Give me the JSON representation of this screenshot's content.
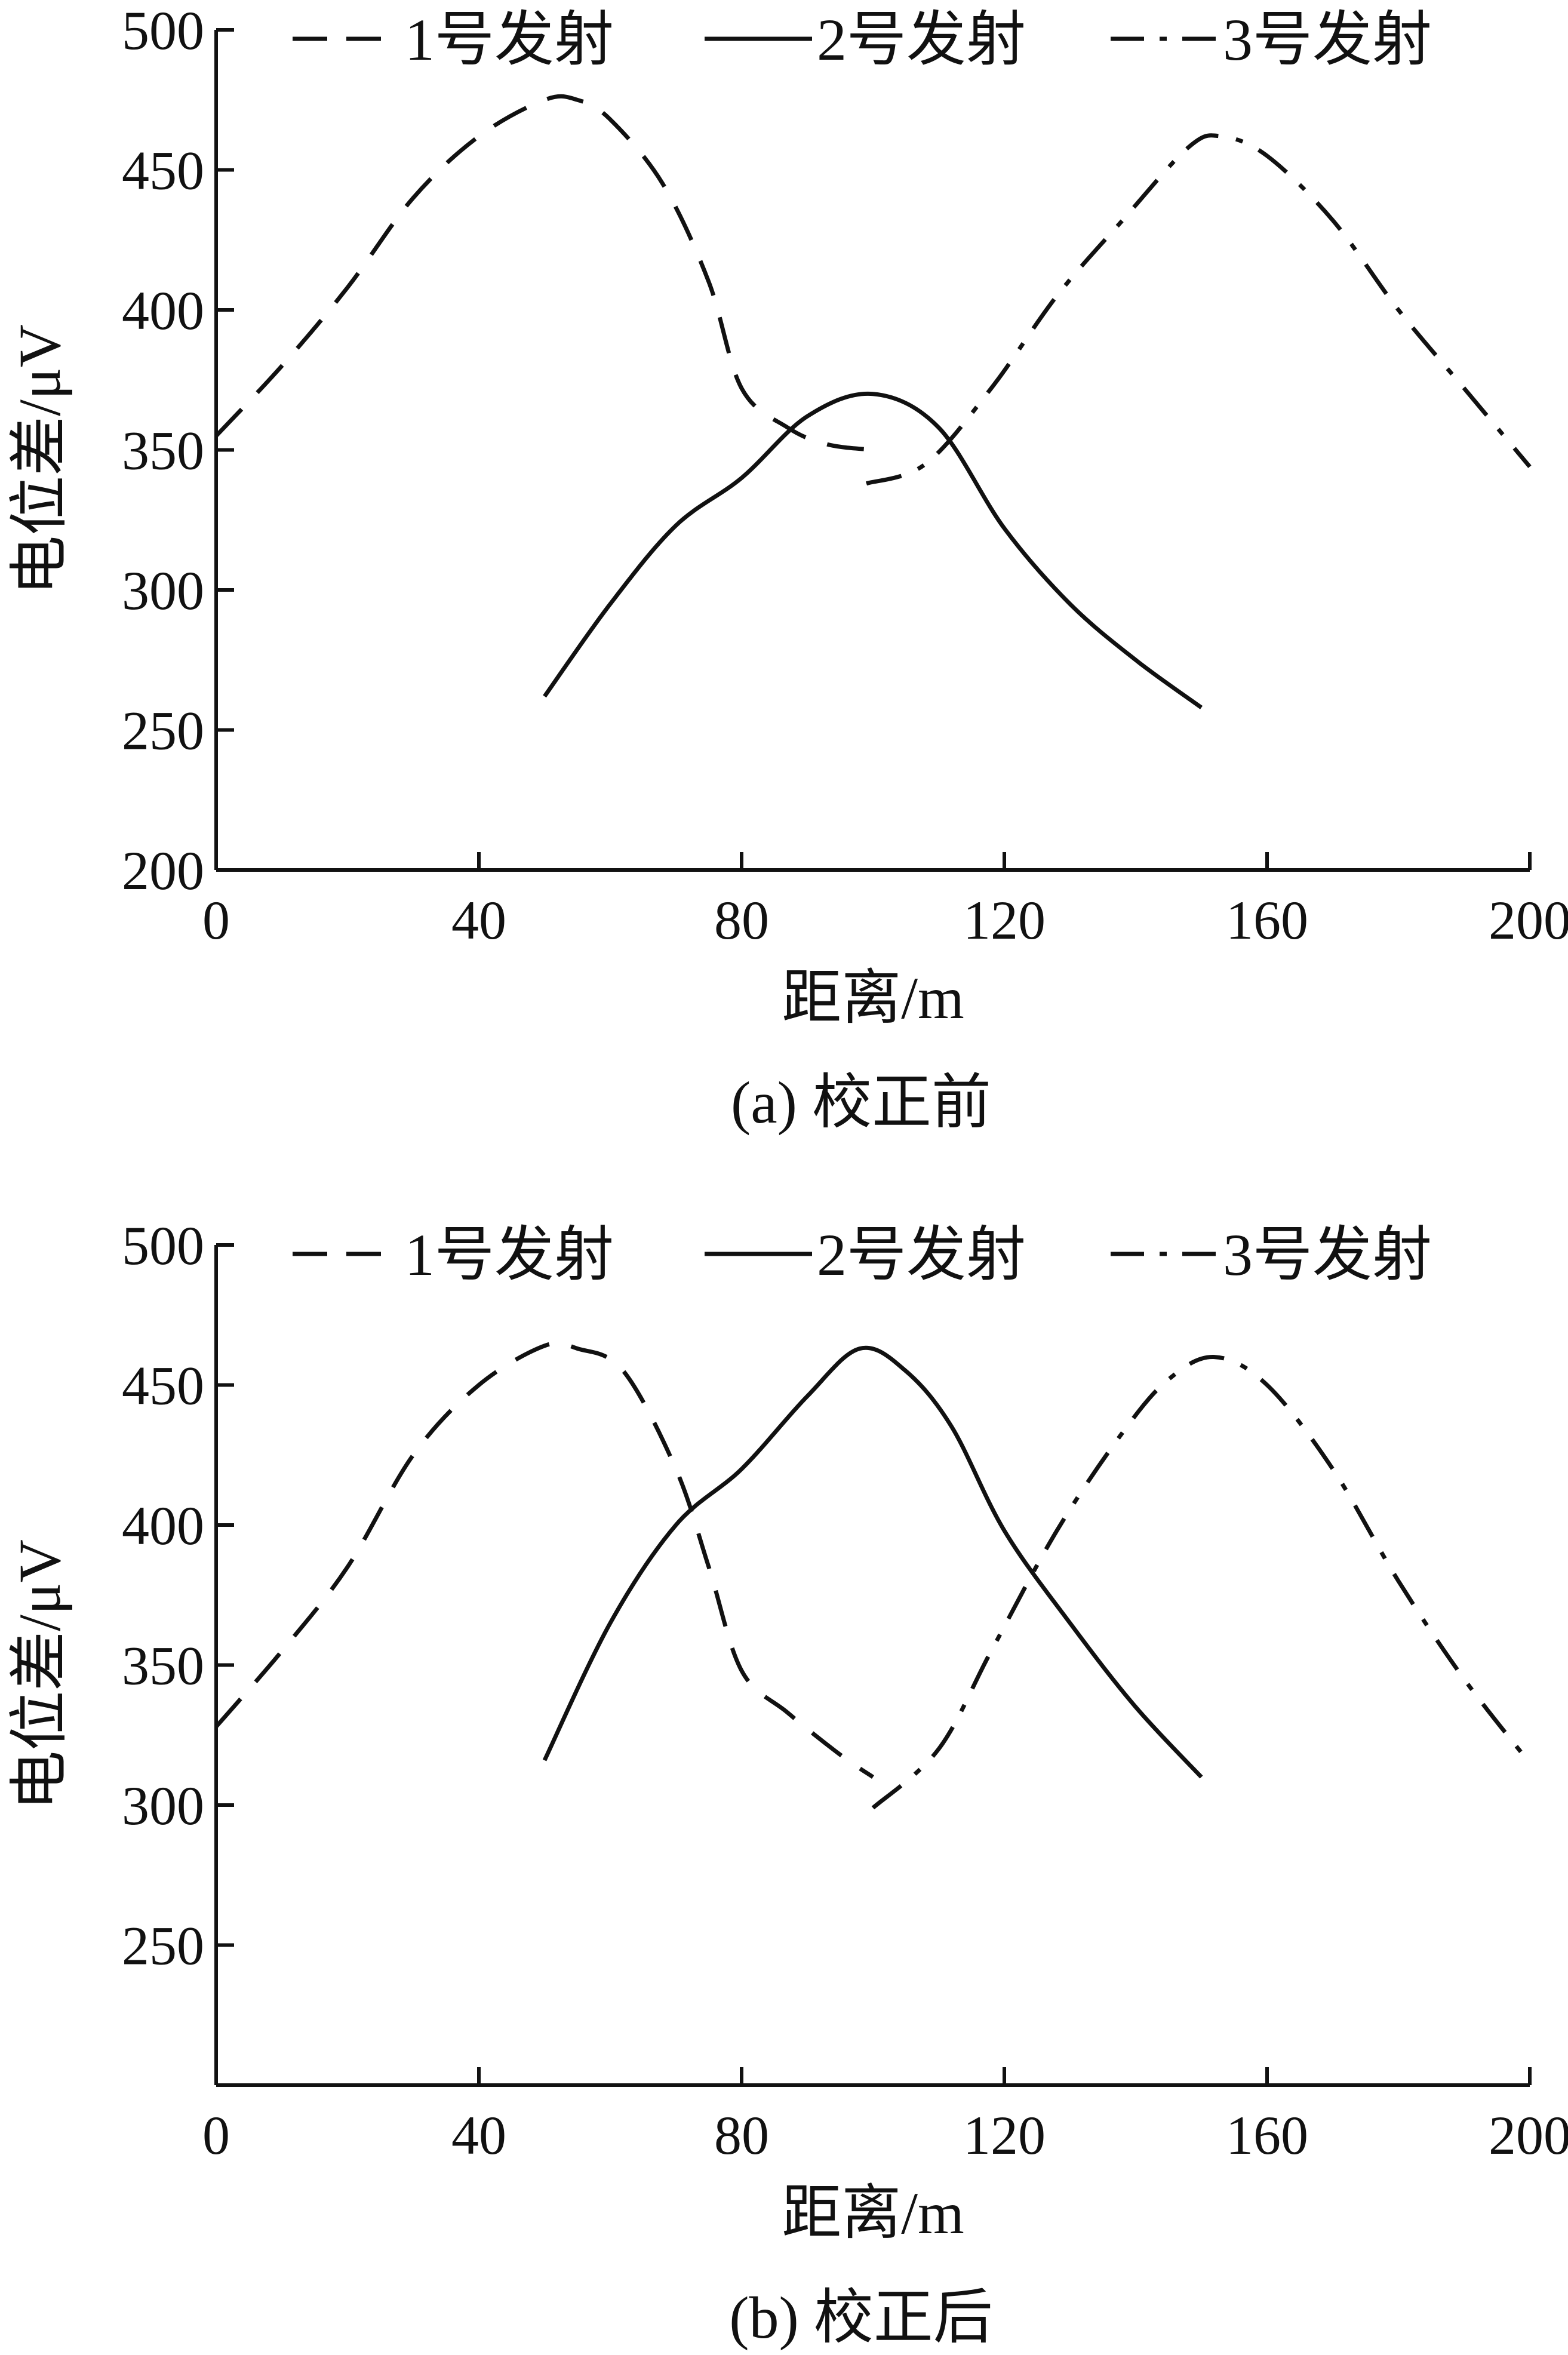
{
  "chart_data": [
    {
      "type": "line",
      "caption": "(a)  校正前",
      "xlabel": "距离/m",
      "ylabel": "电位差/μV",
      "xlim": [
        0,
        200
      ],
      "ylim": [
        200,
        500
      ],
      "xticks": [
        0,
        40,
        80,
        120,
        160,
        200
      ],
      "yticks": [
        200,
        250,
        300,
        350,
        400,
        450,
        500
      ],
      "grid": false,
      "legend": {
        "position": "top",
        "orientation": "horizontal"
      },
      "series": [
        {
          "name": "1号发射",
          "style": "dashed",
          "points": [
            [
              0,
              355
            ],
            [
              10,
              380
            ],
            [
              20,
              408
            ],
            [
              30,
              440
            ],
            [
              40,
              462
            ],
            [
              50,
              475
            ],
            [
              55,
              475
            ],
            [
              60,
              468
            ],
            [
              68,
              445
            ],
            [
              75,
              410
            ],
            [
              80,
              372
            ],
            [
              87,
              358
            ],
            [
              93,
              352
            ],
            [
              100,
              350
            ]
          ]
        },
        {
          "name": "2号发射",
          "style": "solid",
          "points": [
            [
              50,
              262
            ],
            [
              60,
              295
            ],
            [
              70,
              323
            ],
            [
              80,
              340
            ],
            [
              90,
              362
            ],
            [
              100,
              370
            ],
            [
              110,
              358
            ],
            [
              120,
              322
            ],
            [
              130,
              295
            ],
            [
              140,
              275
            ],
            [
              150,
              258
            ]
          ]
        },
        {
          "name": "3号发射",
          "style": "dashdot",
          "points": [
            [
              99,
              338
            ],
            [
              108,
              345
            ],
            [
              118,
              372
            ],
            [
              128,
              405
            ],
            [
              138,
              432
            ],
            [
              148,
              458
            ],
            [
              153,
              462
            ],
            [
              160,
              455
            ],
            [
              170,
              432
            ],
            [
              180,
              400
            ],
            [
              190,
              372
            ],
            [
              200,
              344
            ]
          ]
        }
      ]
    },
    {
      "type": "line",
      "caption": "(b)  校正后",
      "xlabel": "距离/m",
      "ylabel": "电位差/μV",
      "xlim": [
        0,
        200
      ],
      "ylim": [
        200,
        500
      ],
      "xticks": [
        0,
        40,
        80,
        120,
        160,
        200
      ],
      "yticks": [
        250,
        300,
        350,
        400,
        450,
        500
      ],
      "grid": false,
      "legend": {
        "position": "top",
        "orientation": "horizontal"
      },
      "series": [
        {
          "name": "1号发射",
          "style": "dashed",
          "points": [
            [
              0,
              328
            ],
            [
              10,
              355
            ],
            [
              20,
              385
            ],
            [
              30,
              425
            ],
            [
              40,
              450
            ],
            [
              50,
              464
            ],
            [
              55,
              463
            ],
            [
              62,
              455
            ],
            [
              70,
              420
            ],
            [
              75,
              385
            ],
            [
              80,
              348
            ],
            [
              87,
              333
            ],
            [
              95,
              318
            ],
            [
              100,
              310
            ]
          ]
        },
        {
          "name": "2号发射",
          "style": "solid",
          "points": [
            [
              50,
              316
            ],
            [
              60,
              365
            ],
            [
              70,
              400
            ],
            [
              80,
              420
            ],
            [
              90,
              446
            ],
            [
              98,
              463
            ],
            [
              105,
              455
            ],
            [
              112,
              435
            ],
            [
              120,
              398
            ],
            [
              130,
              365
            ],
            [
              140,
              335
            ],
            [
              150,
              310
            ]
          ]
        },
        {
          "name": "3号发射",
          "style": "dashdot",
          "points": [
            [
              100,
              299
            ],
            [
              110,
              320
            ],
            [
              118,
              355
            ],
            [
              128,
              398
            ],
            [
              138,
              433
            ],
            [
              145,
              452
            ],
            [
              152,
              460
            ],
            [
              160,
              450
            ],
            [
              170,
              420
            ],
            [
              180,
              380
            ],
            [
              190,
              345
            ],
            [
              200,
              315
            ]
          ]
        }
      ]
    }
  ]
}
